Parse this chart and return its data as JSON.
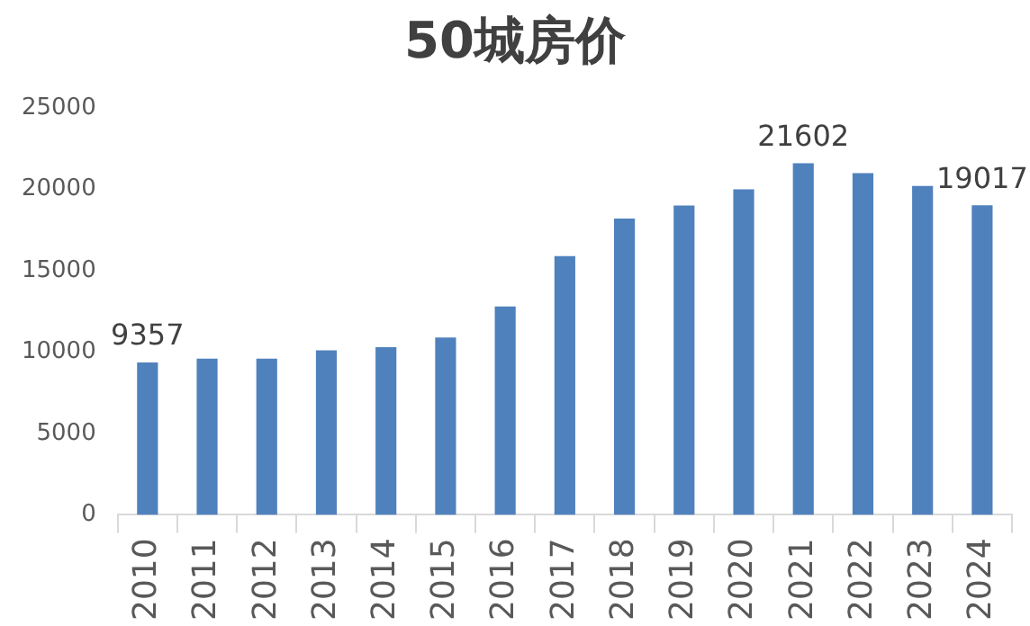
{
  "chart_data": {
    "type": "bar",
    "title": "50城房价",
    "categories": [
      "2010",
      "2011",
      "2012",
      "2013",
      "2014",
      "2015",
      "2016",
      "2017",
      "2018",
      "2019",
      "2020",
      "2021",
      "2022",
      "2023",
      "2024"
    ],
    "values": [
      9357,
      9600,
      9600,
      10100,
      10300,
      10900,
      12800,
      15900,
      18200,
      19000,
      20000,
      21602,
      21000,
      20200,
      19017
    ],
    "value_labels": [
      "9357",
      null,
      null,
      null,
      null,
      null,
      null,
      null,
      null,
      null,
      null,
      "21602",
      null,
      null,
      "19017"
    ],
    "color": "#4f81bd",
    "ylim": [
      0,
      25000
    ],
    "yticks": [
      0,
      5000,
      10000,
      15000,
      20000,
      25000
    ],
    "grid": false,
    "legend": false
  }
}
